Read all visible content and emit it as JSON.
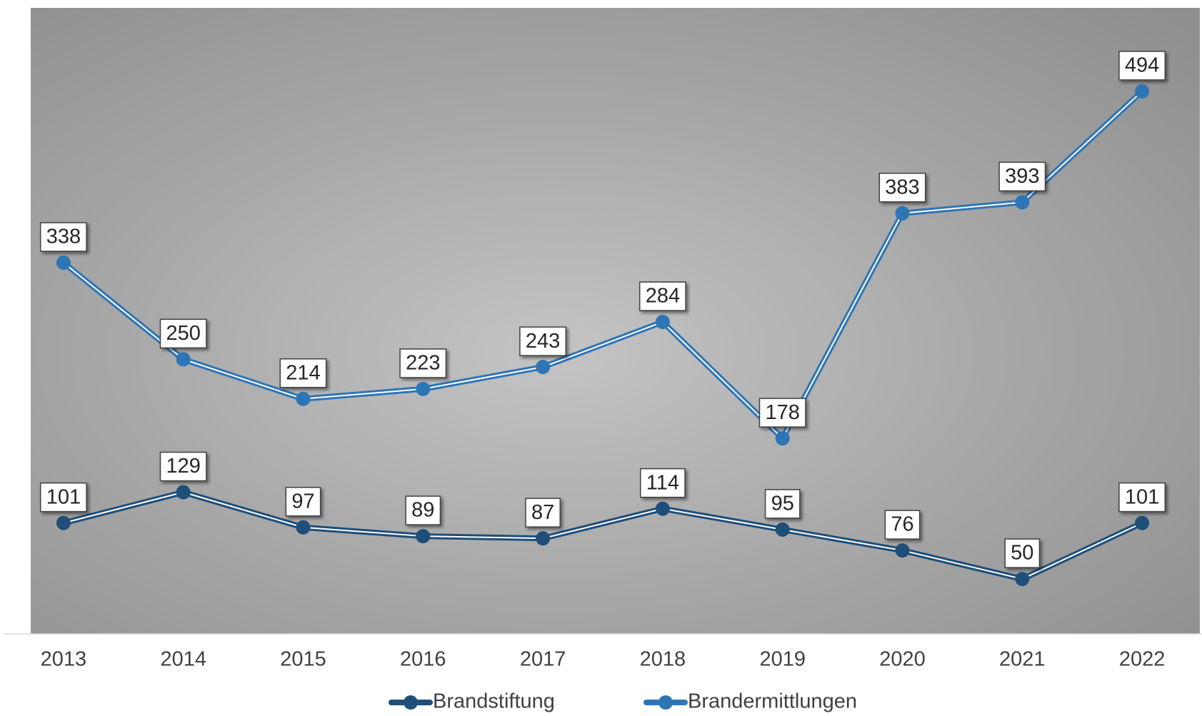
{
  "chart_data": {
    "type": "line",
    "categories": [
      "2013",
      "2014",
      "2015",
      "2016",
      "2017",
      "2018",
      "2019",
      "2020",
      "2021",
      "2022"
    ],
    "series": [
      {
        "name": "Brandstiftung",
        "color": "#1f4e79",
        "values": [
          101,
          129,
          97,
          89,
          87,
          114,
          95,
          76,
          50,
          101
        ]
      },
      {
        "name": "Brandermittlungen",
        "color": "#2e75b6",
        "values": [
          338,
          250,
          214,
          223,
          243,
          284,
          178,
          383,
          393,
          494
        ]
      }
    ],
    "ylim": [
      0,
      570
    ],
    "legend": "bottom"
  }
}
